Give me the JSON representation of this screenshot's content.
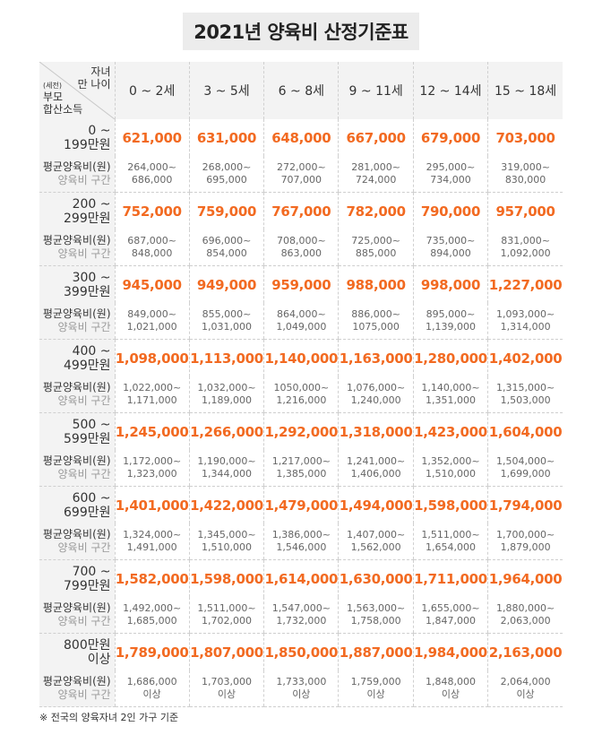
{
  "title": "2021년 양육비 산정기준표",
  "corner": {
    "top_right_1": "자녀",
    "top_right_2": "만 나이",
    "bottom_left_small": "(세전)",
    "bottom_left_1": "부모",
    "bottom_left_2": "합산소득"
  },
  "columns": [
    "0 ~ 2세",
    "3 ~ 5세",
    "6 ~ 8세",
    "9 ~ 11세",
    "12 ~ 14세",
    "15 ~ 18세"
  ],
  "sub_label_1": "평균양육비(원)",
  "sub_label_2": "양육비 구간",
  "rows": [
    {
      "label1": "0 ~",
      "label2": "199만원",
      "values": [
        "621,000",
        "631,000",
        "648,000",
        "667,000",
        "679,000",
        "703,000"
      ],
      "ranges": [
        [
          "264,000~",
          "686,000"
        ],
        [
          "268,000~",
          "695,000"
        ],
        [
          "272,000~",
          "707,000"
        ],
        [
          "281,000~",
          "724,000"
        ],
        [
          "295,000~",
          "734,000"
        ],
        [
          "319,000~",
          "830,000"
        ]
      ]
    },
    {
      "label1": "200 ~",
      "label2": "299만원",
      "values": [
        "752,000",
        "759,000",
        "767,000",
        "782,000",
        "790,000",
        "957,000"
      ],
      "ranges": [
        [
          "687,000~",
          "848,000"
        ],
        [
          "696,000~",
          "854,000"
        ],
        [
          "708,000~",
          "863,000"
        ],
        [
          "725,000~",
          "885,000"
        ],
        [
          "735,000~",
          "894,000"
        ],
        [
          "831,000~",
          "1,092,000"
        ]
      ]
    },
    {
      "label1": "300 ~",
      "label2": "399만원",
      "values": [
        "945,000",
        "949,000",
        "959,000",
        "988,000",
        "998,000",
        "1,227,000"
      ],
      "ranges": [
        [
          "849,000~",
          "1,021,000"
        ],
        [
          "855,000~",
          "1,031,000"
        ],
        [
          "864,000~",
          "1,049,000"
        ],
        [
          "886,000~",
          "1075,000"
        ],
        [
          "895,000~",
          "1,139,000"
        ],
        [
          "1,093,000~",
          "1,314,000"
        ]
      ]
    },
    {
      "label1": "400 ~",
      "label2": "499만원",
      "values": [
        "1,098,000",
        "1,113,000",
        "1,140,000",
        "1,163,000",
        "1,280,000",
        "1,402,000"
      ],
      "ranges": [
        [
          "1,022,000~",
          "1,171,000"
        ],
        [
          "1,032,000~",
          "1,189,000"
        ],
        [
          "1050,000~",
          "1,216,000"
        ],
        [
          "1,076,000~",
          "1,240,000"
        ],
        [
          "1,140,000~",
          "1,351,000"
        ],
        [
          "1,315,000~",
          "1,503,000"
        ]
      ]
    },
    {
      "label1": "500 ~",
      "label2": "599만원",
      "values": [
        "1,245,000",
        "1,266,000",
        "1,292,000",
        "1,318,000",
        "1,423,000",
        "1,604,000"
      ],
      "ranges": [
        [
          "1,172,000~",
          "1,323,000"
        ],
        [
          "1,190,000~",
          "1,344,000"
        ],
        [
          "1,217,000~",
          "1,385,000"
        ],
        [
          "1,241,000~",
          "1,406,000"
        ],
        [
          "1,352,000~",
          "1,510,000"
        ],
        [
          "1,504,000~",
          "1,699,000"
        ]
      ]
    },
    {
      "label1": "600 ~",
      "label2": "699만원",
      "values": [
        "1,401,000",
        "1,422,000",
        "1,479,000",
        "1,494,000",
        "1,598,000",
        "1,794,000"
      ],
      "ranges": [
        [
          "1,324,000~",
          "1,491,000"
        ],
        [
          "1,345,000~",
          "1,510,000"
        ],
        [
          "1,386,000~",
          "1,546,000"
        ],
        [
          "1,407,000~",
          "1,562,000"
        ],
        [
          "1,511,000~",
          "1,654,000"
        ],
        [
          "1,700,000~",
          "1,879,000"
        ]
      ]
    },
    {
      "label1": "700 ~",
      "label2": "799만원",
      "values": [
        "1,582,000",
        "1,598,000",
        "1,614,000",
        "1,630,000",
        "1,711,000",
        "1,964,000"
      ],
      "ranges": [
        [
          "1,492,000~",
          "1,685,000"
        ],
        [
          "1,511,000~",
          "1,702,000"
        ],
        [
          "1,547,000~",
          "1,732,000"
        ],
        [
          "1,563,000~",
          "1,758,000"
        ],
        [
          "1,655,000~",
          "1,847,000"
        ],
        [
          "1,880,000~",
          "2,063,000"
        ]
      ]
    },
    {
      "label1": "800만원",
      "label2": "이상",
      "values": [
        "1,789,000",
        "1,807,000",
        "1,850,000",
        "1,887,000",
        "1,984,000",
        "2,163,000"
      ],
      "ranges": [
        [
          "1,686,000",
          "이상"
        ],
        [
          "1,703,000",
          "이상"
        ],
        [
          "1,733,000",
          "이상"
        ],
        [
          "1,759,000",
          "이상"
        ],
        [
          "1,848,000",
          "이상"
        ],
        [
          "2,064,000",
          "이상"
        ]
      ]
    }
  ],
  "note": "※ 전국의 양육자녀 2인 가구 기준",
  "colors": {
    "accent": "#f26a21",
    "header_bg": "#f3f3f3",
    "title_bg": "#ececec"
  }
}
